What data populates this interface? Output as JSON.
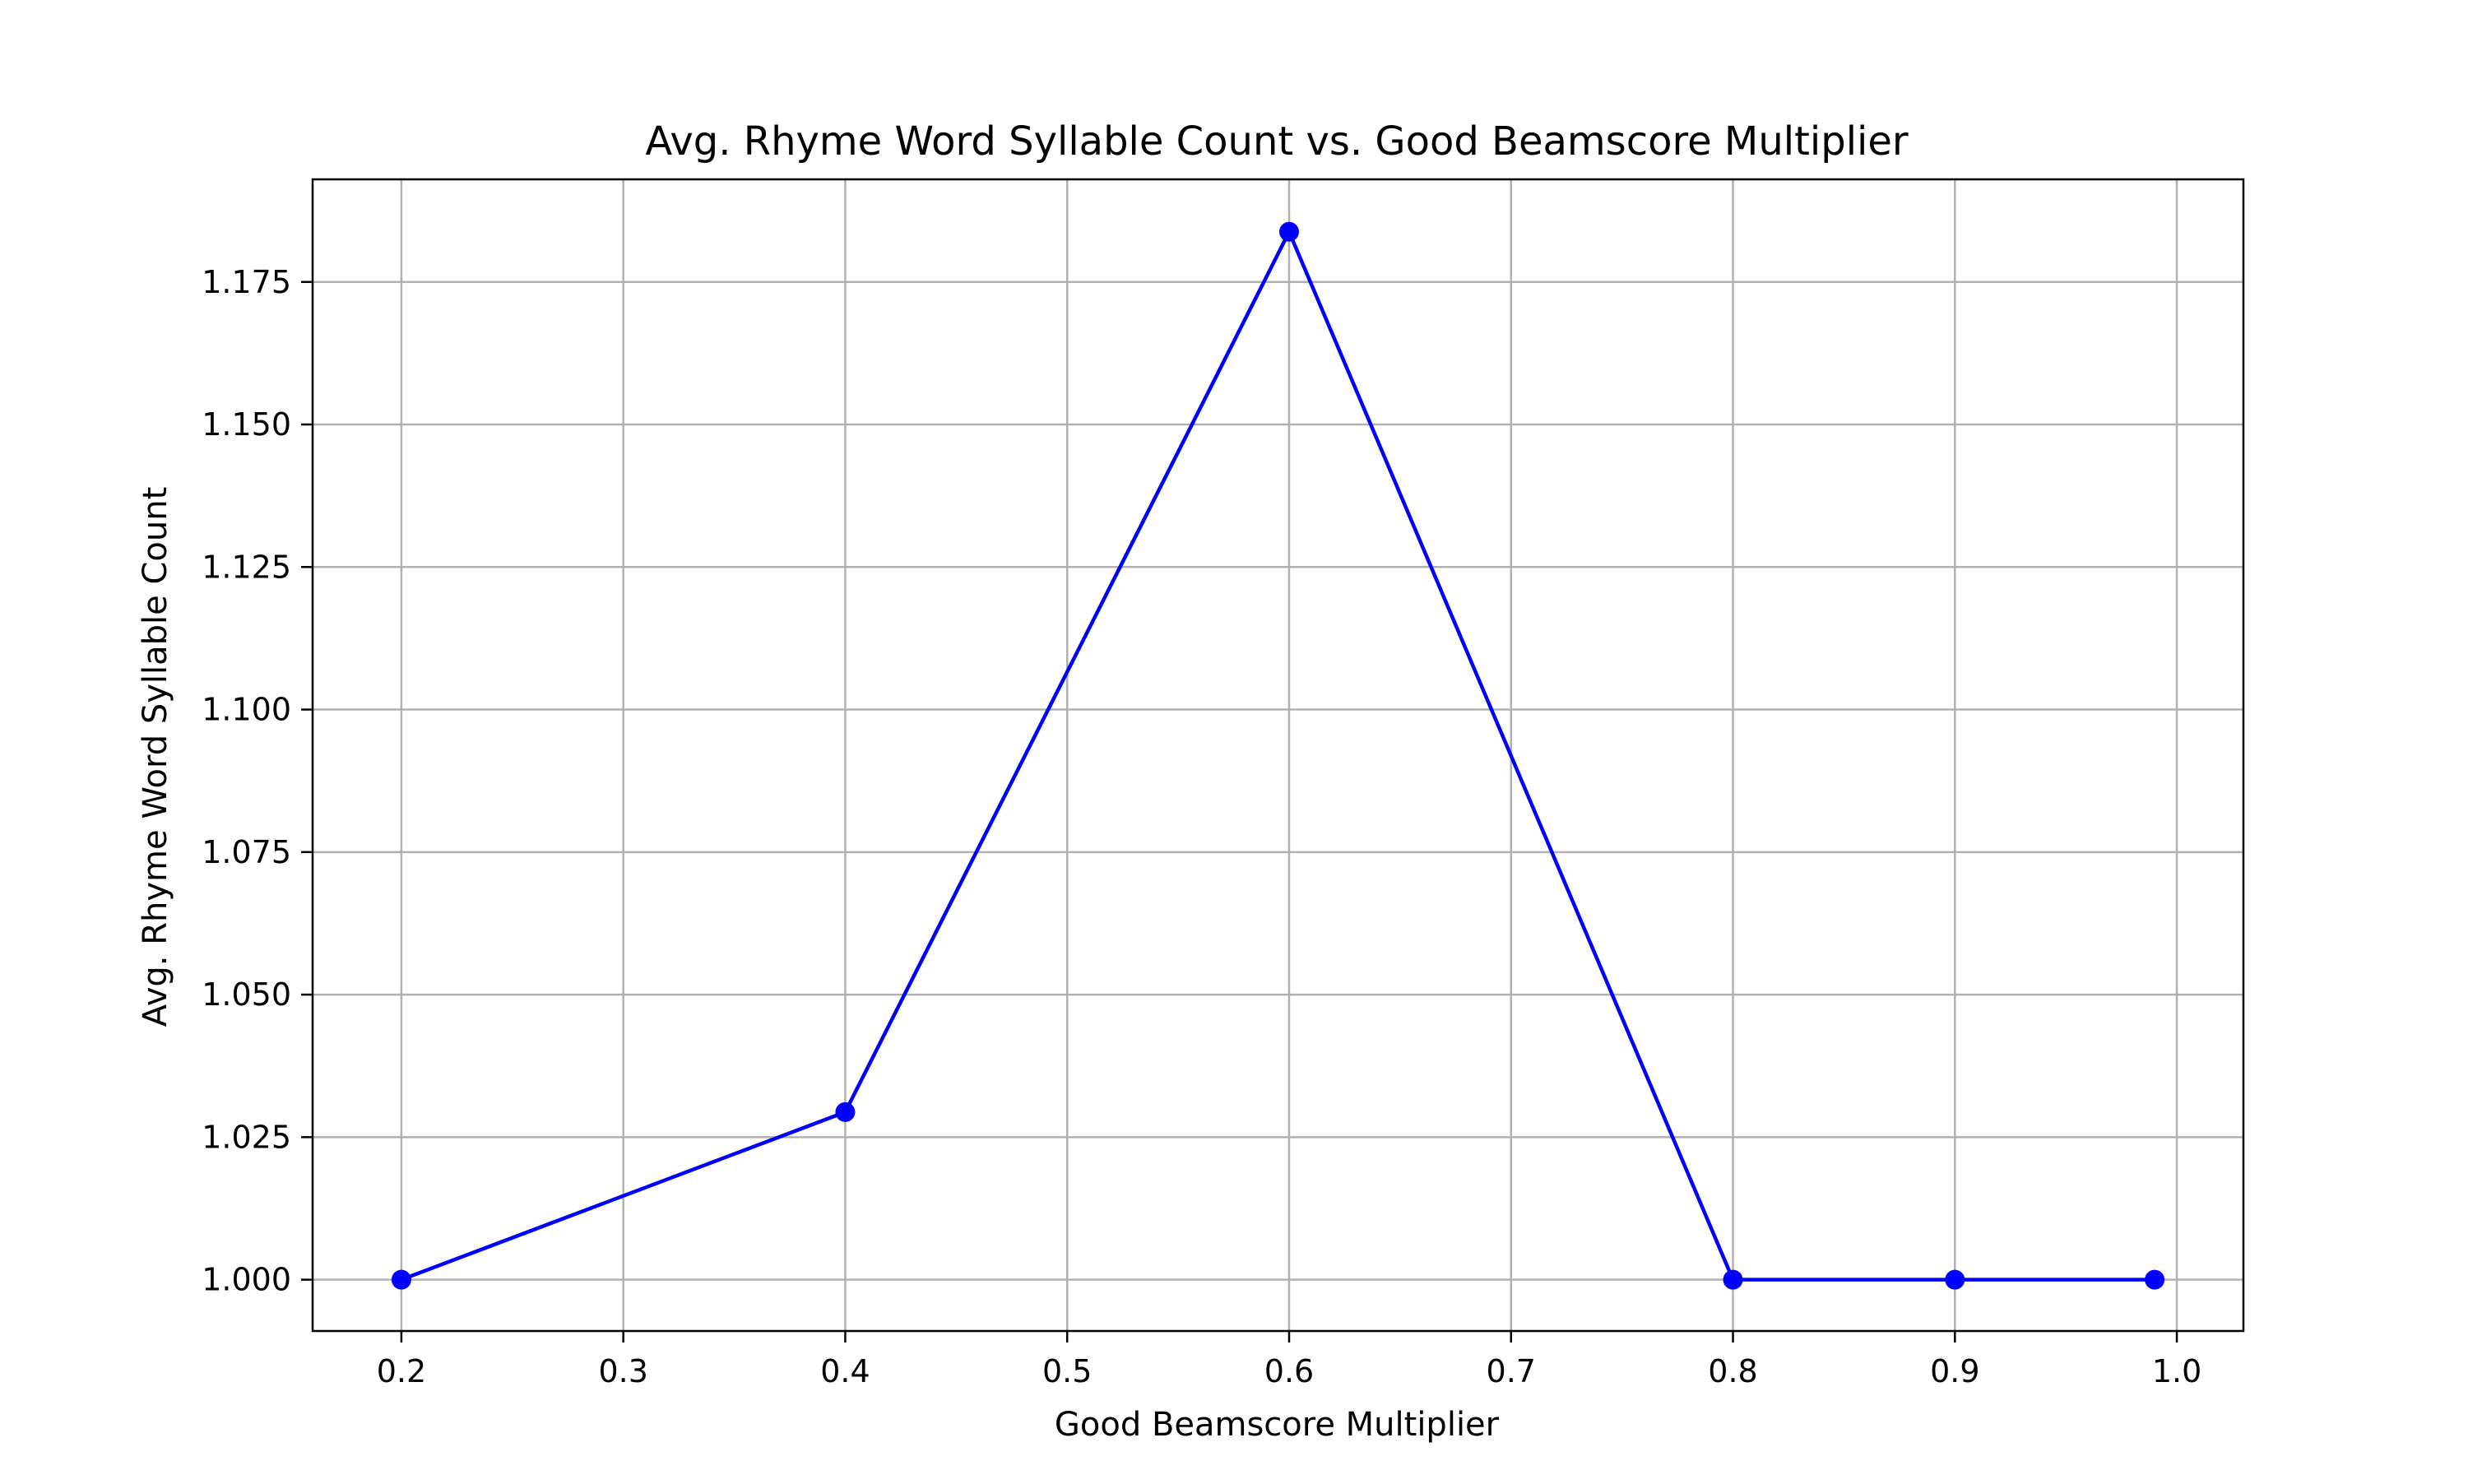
{
  "chart_data": {
    "type": "line",
    "title": "Avg. Rhyme Word Syllable Count vs. Good Beamscore Multiplier",
    "xlabel": "Good Beamscore Multiplier",
    "ylabel": "Avg. Rhyme Word Syllable Count",
    "xlim": [
      0.16,
      1.03
    ],
    "ylim": [
      0.991,
      1.193
    ],
    "xticks": [
      "0.2",
      "0.3",
      "0.4",
      "0.5",
      "0.6",
      "0.7",
      "0.8",
      "0.9",
      "1.0"
    ],
    "yticks": [
      "1.000",
      "1.025",
      "1.050",
      "1.075",
      "1.100",
      "1.125",
      "1.150",
      "1.175"
    ],
    "grid": true,
    "series": [
      {
        "color": "#0000ff",
        "marker": "circle",
        "x": [
          0.2,
          0.4,
          0.6,
          0.8,
          0.9,
          0.99
        ],
        "y": [
          1.0,
          1.0294,
          1.1838,
          1.0,
          1.0,
          1.0
        ]
      }
    ]
  }
}
